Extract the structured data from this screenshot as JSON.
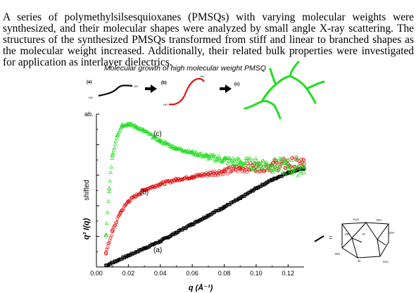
{
  "abstract": {
    "text": "A series of polymethylsilsesquioxanes (PMSQs) with varying molecular weights were synthesized, and their molecular shapes were analyzed by small angle X-ray scattering. The structures of the synthesized PMSQs transformed from stiff and linear to branched shapes as the molecular weight increased. Additionally, their related bulk properties were investigated for application as interlayer dielectrics."
  },
  "figure": {
    "title": "Molecular growth of high molecular weight PMSQ",
    "schematic": {
      "labels": [
        "(a)",
        "(b)",
        "(c)"
      ],
      "colors": [
        "#000000",
        "#e00000",
        "#22dd22"
      ],
      "arrow_icon": "right-arrow-icon",
      "end_group": "OH",
      "end_group_alt": "HO"
    },
    "structure_labels": {
      "legend_eq": "=",
      "oh": "OH",
      "ch3": "H₃C",
      "ch3b": "CH₃",
      "si": "Si",
      "o": "O",
      "ho": "HO"
    }
  },
  "chart_data": {
    "type": "scatter",
    "xlabel": "q (Å⁻¹)",
    "ylabel": "q² I(q)",
    "ylabel_extra": "shifted",
    "y_unit": "ab.",
    "xlim": [
      0.0,
      0.13
    ],
    "ylim": [
      0,
      1.0
    ],
    "x_ticks": [
      "0.00",
      "0.02",
      "0.04",
      "0.06",
      "0.08",
      "0.10",
      "0.12"
    ],
    "y_ticks_labeled": false,
    "series": [
      {
        "name": "(a)",
        "color": "#000000",
        "marker": "square",
        "x": [
          0.006,
          0.01,
          0.02,
          0.03,
          0.04,
          0.05,
          0.06,
          0.07,
          0.08,
          0.09,
          0.1,
          0.11,
          0.12,
          0.13
        ],
        "y": [
          0.01,
          0.03,
          0.08,
          0.13,
          0.18,
          0.24,
          0.3,
          0.36,
          0.42,
          0.48,
          0.55,
          0.61,
          0.66,
          0.69
        ]
      },
      {
        "name": "(b)",
        "color": "#e00000",
        "marker": "circle",
        "x": [
          0.006,
          0.01,
          0.015,
          0.02,
          0.03,
          0.04,
          0.05,
          0.06,
          0.07,
          0.08,
          0.09,
          0.1,
          0.11,
          0.12,
          0.13
        ],
        "y": [
          0.1,
          0.25,
          0.38,
          0.46,
          0.54,
          0.58,
          0.61,
          0.63,
          0.65,
          0.67,
          0.69,
          0.7,
          0.71,
          0.72,
          0.72
        ]
      },
      {
        "name": "(c)",
        "color": "#22dd22",
        "marker": "triangle",
        "x": [
          0.006,
          0.008,
          0.01,
          0.013,
          0.016,
          0.02,
          0.025,
          0.03,
          0.04,
          0.05,
          0.06,
          0.07,
          0.08,
          0.09,
          0.1,
          0.11,
          0.12,
          0.13
        ],
        "y": [
          0.22,
          0.55,
          0.78,
          0.92,
          0.99,
          1.0,
          0.98,
          0.95,
          0.88,
          0.83,
          0.8,
          0.77,
          0.75,
          0.73,
          0.72,
          0.71,
          0.7,
          0.7
        ]
      }
    ],
    "annotations": [
      "(a)",
      "(b)",
      "(c)"
    ],
    "grid": false,
    "legend": "none"
  }
}
